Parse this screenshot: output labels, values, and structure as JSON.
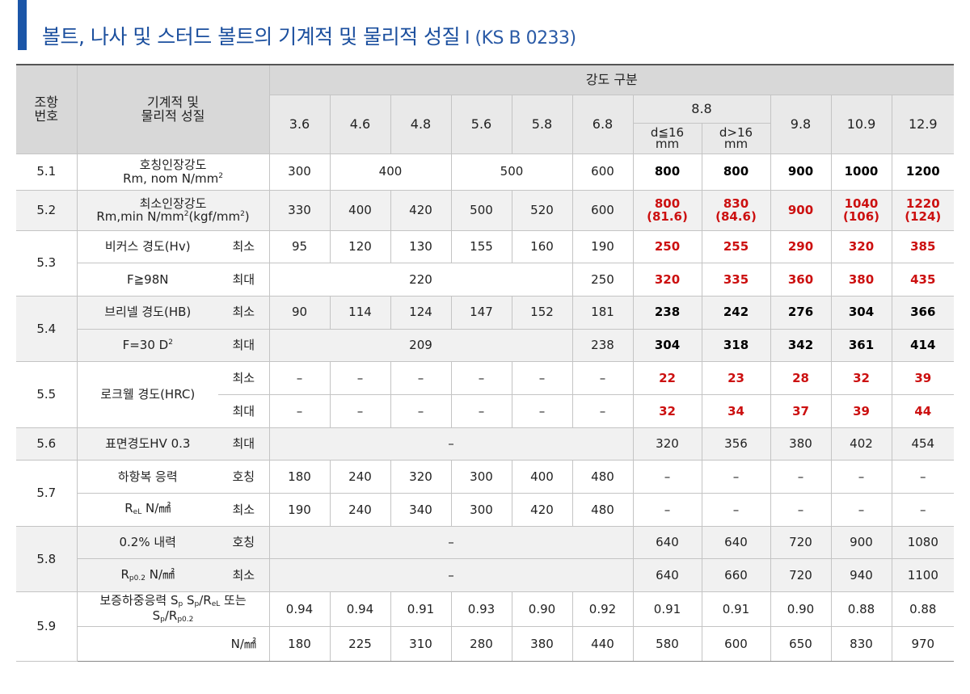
{
  "header": {
    "title": "볼트, 나사 및 스터드 볼트의 기계적 및 물리적 성질",
    "standard": "I (KS B 0233)"
  },
  "table": {
    "head": {
      "no": "조항\n번호",
      "property": "기계적 및\n물리적 성질",
      "group": "강도 구분",
      "grades": [
        "3.6",
        "4.6",
        "4.8",
        "5.6",
        "5.8",
        "6.8",
        "8.8",
        "9.8",
        "10.9",
        "12.9"
      ],
      "sub_88": [
        "d≦16\nmm",
        "d>16\nmm"
      ]
    },
    "sections": [
      {
        "no": "5.1",
        "label": [
          "호칭인장강도\nRm,  nom  N/mm",
          {
            "sup": "2"
          }
        ],
        "emphasis_color": "#000000",
        "rows": [
          {
            "cells": [
              "300",
              "400",
              null,
              "500",
              null,
              "600",
              "800",
              "800",
              "900",
              "1000",
              "1200"
            ]
          }
        ]
      },
      {
        "no": "5.2",
        "shaded": true,
        "label": [
          "최소인장강도\nRm,min  N/mm",
          {
            "sup": "2"
          },
          "(kgf/mm",
          {
            "sup": "2"
          },
          ")"
        ],
        "emphasis_color": "#cc1010",
        "rows": [
          {
            "cells": [
              "330",
              "400",
              "420",
              "500",
              "520",
              "600",
              "800\n(81.6)",
              "830\n(84.6)",
              "900",
              "1040\n(106)",
              "1220\n(124)"
            ]
          }
        ]
      },
      {
        "no": "5.3",
        "emphasis_color": "#cc1010",
        "rows": [
          {
            "label": [
              "비커스  경도(Hv)"
            ],
            "qualifier": "최소",
            "cells": [
              "95",
              "120",
              "130",
              "155",
              "160",
              "190",
              "250",
              "255",
              "290",
              "320",
              "385"
            ]
          },
          {
            "label": [
              "F≧98N"
            ],
            "qualifier": "최대",
            "cells": [
              "220",
              null,
              null,
              null,
              null,
              "250",
              "320",
              "335",
              "360",
              "380",
              "435"
            ]
          }
        ]
      },
      {
        "no": "5.4",
        "shaded": true,
        "emphasis_color": "#000000",
        "rows": [
          {
            "label": [
              "브리넬  경도(HB)"
            ],
            "qualifier": "최소",
            "cells": [
              "90",
              "114",
              "124",
              "147",
              "152",
              "181",
              "238",
              "242",
              "276",
              "304",
              "366"
            ]
          },
          {
            "label": [
              "F=30  D",
              {
                "sup": "2"
              }
            ],
            "qualifier": "최대",
            "cells": [
              "209",
              null,
              null,
              null,
              null,
              "238",
              "304",
              "318",
              "342",
              "361",
              "414"
            ]
          }
        ]
      },
      {
        "no": "5.5",
        "label": [
          "로크웰  경도(HRC)"
        ],
        "emphasis_color": "#cc1010",
        "rows": [
          {
            "qualifier": "최소",
            "cells": [
              "–",
              "–",
              "–",
              "–",
              "–",
              "–",
              "22",
              "23",
              "28",
              "32",
              "39"
            ]
          },
          {
            "qualifier": "최대",
            "cells": [
              "–",
              "–",
              "–",
              "–",
              "–",
              "–",
              "32",
              "34",
              "37",
              "39",
              "44"
            ]
          }
        ]
      },
      {
        "no": "5.6",
        "shaded": true,
        "rows": [
          {
            "label": [
              "표면경도HV  0.3"
            ],
            "qualifier": "최대",
            "cells": [
              "–",
              null,
              null,
              null,
              null,
              null,
              "320",
              "356",
              "380",
              "402",
              "454"
            ]
          }
        ]
      },
      {
        "no": "5.7",
        "rows": [
          {
            "label": [
              "하항복  응력"
            ],
            "qualifier": "호칭",
            "cells": [
              "180",
              "240",
              "320",
              "300",
              "400",
              "480",
              "–",
              "–",
              "–",
              "–",
              "–"
            ]
          },
          {
            "label": [
              "R",
              {
                "sub": "eL"
              },
              "   N/㎟"
            ],
            "qualifier": "최소",
            "cells": [
              "190",
              "240",
              "340",
              "300",
              "420",
              "480",
              "–",
              "–",
              "–",
              "–",
              "–"
            ]
          }
        ]
      },
      {
        "no": "5.8",
        "shaded": true,
        "rows": [
          {
            "label": [
              "0.2%  내력"
            ],
            "qualifier": "호칭",
            "cells": [
              "–",
              null,
              null,
              null,
              null,
              null,
              "640",
              "640",
              "720",
              "900",
              "1080"
            ]
          },
          {
            "label": [
              "R",
              {
                "sub": "p0.2"
              },
              "   N/㎟"
            ],
            "qualifier": "최소",
            "cells": [
              "–",
              null,
              null,
              null,
              null,
              null,
              "640",
              "660",
              "720",
              "940",
              "1100"
            ]
          }
        ]
      },
      {
        "no": "5.9",
        "rows": [
          {
            "label": [
              "보증하중응력  S",
              {
                "sub": "p"
              },
              "  S",
              {
                "sub": "p"
              },
              "/R",
              {
                "sub": "eL"
              },
              "  또는\nS",
              {
                "sub": "p"
              },
              "/R",
              {
                "sub": "p0.2"
              }
            ],
            "cells": [
              "0.94",
              "0.94",
              "0.91",
              "0.93",
              "0.90",
              "0.92",
              "0.91",
              "0.91",
              "0.90",
              "0.88",
              "0.88"
            ]
          },
          {
            "qualifier": "N/㎟",
            "cells": [
              "180",
              "225",
              "310",
              "280",
              "380",
              "440",
              "580",
              "600",
              "650",
              "830",
              "970"
            ]
          }
        ]
      }
    ]
  }
}
